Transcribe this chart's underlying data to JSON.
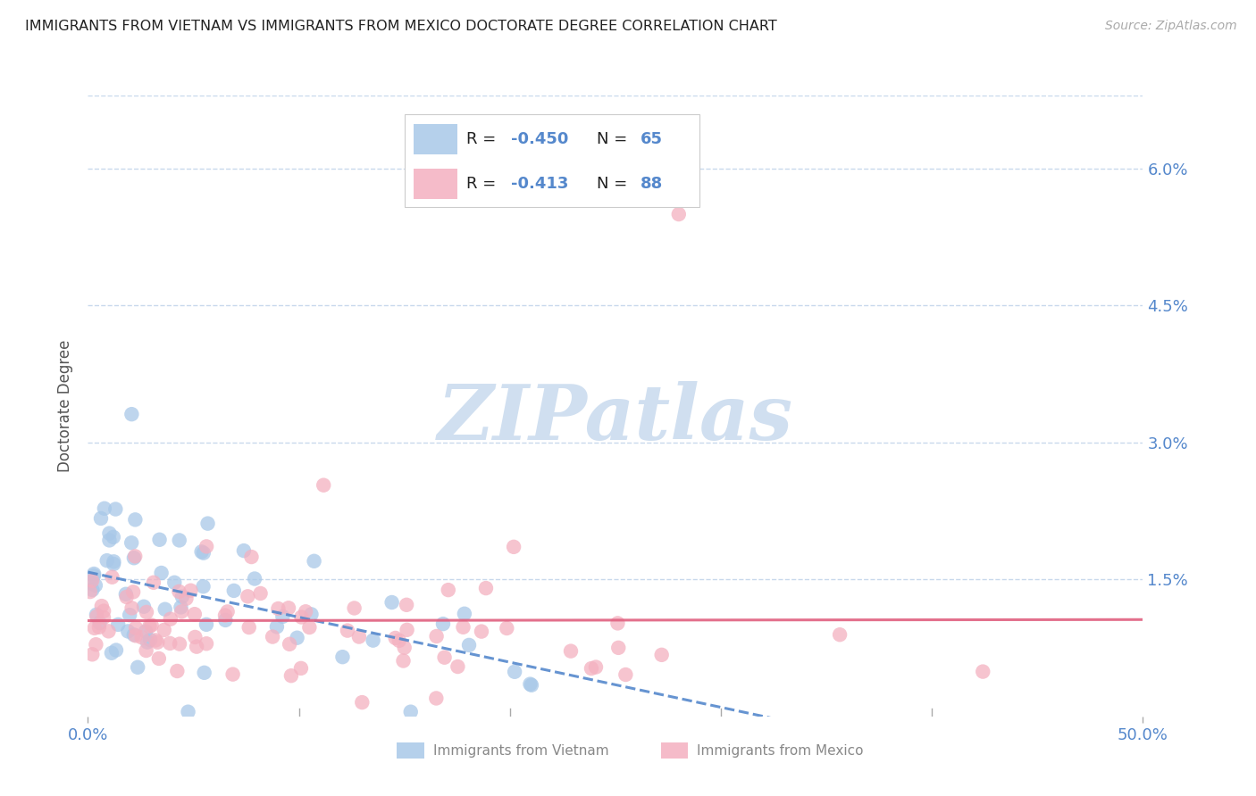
{
  "title": "IMMIGRANTS FROM VIETNAM VS IMMIGRANTS FROM MEXICO DOCTORATE DEGREE CORRELATION CHART",
  "source": "Source: ZipAtlas.com",
  "ylabel": "Doctorate Degree",
  "yticks": [
    0.0,
    0.015,
    0.03,
    0.045,
    0.06
  ],
  "ytick_labels": [
    "",
    "1.5%",
    "3.0%",
    "4.5%",
    "6.0%"
  ],
  "xtick_labels": [
    "0.0%",
    "50.0%"
  ],
  "xlim": [
    0.0,
    0.5
  ],
  "ylim": [
    0.0,
    0.068
  ],
  "vietnam_color": "#a8c8e8",
  "mexico_color": "#f4b0c0",
  "vietnam_line_color": "#5588cc",
  "mexico_line_color": "#e06080",
  "background_color": "#ffffff",
  "grid_color": "#c8d8ec",
  "title_color": "#222222",
  "right_axis_color": "#5588cc",
  "watermark_text": "ZIPatlas",
  "watermark_color": "#d0dff0",
  "legend_R_color": "#5588cc",
  "legend_box_color": "#f0f4f8",
  "legend_border_color": "#cccccc",
  "bottom_label_color": "#888888",
  "vietnam_R": -0.45,
  "vietnam_N": 65,
  "mexico_R": -0.413,
  "mexico_N": 88
}
